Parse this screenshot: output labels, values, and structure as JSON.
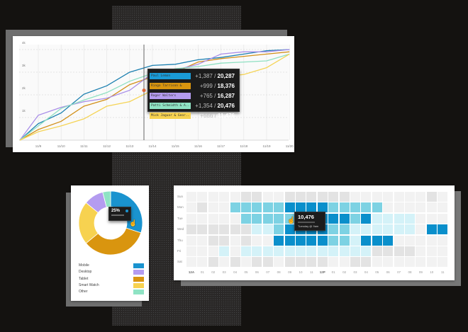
{
  "line_chart": {
    "chart_data": {
      "type": "line",
      "x": [
        "11/9",
        "11/10",
        "11/11",
        "11/12",
        "11/13",
        "11/14",
        "11/15",
        "11/16",
        "11/17",
        "11/18",
        "11/19",
        "11/20"
      ],
      "y_ticks": [
        "1k",
        "2k",
        "3k",
        "4k"
      ],
      "ylim": [
        0,
        4
      ],
      "grid": true,
      "series": [
        {
          "name": "Paul Lemon",
          "color": "#1b7fb0",
          "values": [
            0.73,
            1.2,
            2.03,
            2.4,
            3.0,
            3.3,
            3.35,
            3.55,
            3.65,
            3.8,
            3.95,
            4.0
          ]
        },
        {
          "name": "Ringo Tarrison &",
          "color": "#d2901a",
          "values": [
            0.47,
            0.83,
            1.5,
            1.8,
            2.45,
            2.8,
            3.0,
            3.45,
            3.6,
            3.7,
            3.8,
            3.9
          ]
        },
        {
          "name": "Roger Walters",
          "color": "#a98ee8",
          "values": [
            1.1,
            1.45,
            1.7,
            1.85,
            2.2,
            2.95,
            3.1,
            3.35,
            3.8,
            3.9,
            3.9,
            4.0
          ]
        },
        {
          "name": "Patti Schmidth & A..",
          "color": "#8fe0c2",
          "values": [
            0.63,
            1.4,
            1.77,
            2.1,
            2.6,
            2.95,
            3.15,
            3.25,
            3.4,
            3.45,
            3.5,
            3.8
          ]
        },
        {
          "name": "Mick Jaguar & Geor..",
          "color": "#f5d457",
          "values": [
            0.37,
            0.63,
            0.94,
            1.5,
            1.7,
            2.2,
            2.5,
            2.7,
            2.8,
            2.9,
            3.2,
            3.8
          ]
        }
      ]
    },
    "tooltip": {
      "rows": [
        {
          "name": "Paul Lemon",
          "color": "#1a9bd7",
          "delta": "+1,387",
          "total": "20,287"
        },
        {
          "name": "Ringo Tarrison &",
          "color": "#d9950f",
          "delta": "+999",
          "total": "18,376"
        },
        {
          "name": "Roger Walters",
          "color": "#b49cf0",
          "delta": "+765",
          "total": "16,287"
        },
        {
          "name": "Patti Schmidth & A..",
          "color": "#8fe3c4",
          "delta": "+1,354",
          "total": "20,476"
        },
        {
          "name": "Mick Jaguar & Geor..",
          "color": "#f7d250",
          "delta": "+666",
          "total": "11,476"
        }
      ]
    }
  },
  "donut": {
    "chart_data": {
      "type": "pie",
      "slices": [
        {
          "label": "Mobile",
          "value": 30,
          "color": "#1a93cf"
        },
        {
          "label": "Tablet",
          "value": 34,
          "color": "#d9950f"
        },
        {
          "label": "Smart Watch",
          "value": 22,
          "color": "#f7d250"
        },
        {
          "label": "Desktop",
          "value": 10,
          "color": "#b49cf0"
        },
        {
          "label": "Other",
          "value": 4,
          "color": "#8fe3c4"
        }
      ]
    },
    "legend": [
      {
        "label": "Mobile",
        "color": "#1a93cf"
      },
      {
        "label": "Desktop",
        "color": "#b49cf0"
      },
      {
        "label": "Tablet",
        "color": "#d9950f"
      },
      {
        "label": "Smart Watch",
        "color": "#f7d250"
      },
      {
        "label": "Other",
        "color": "#8fe3c4"
      }
    ],
    "tooltip": {
      "value": "25%"
    }
  },
  "heatmap": {
    "chart_data": {
      "type": "heatmap",
      "rows": [
        "Sun",
        "Mon",
        "Tue",
        "Wed",
        "Thu",
        "Fri",
        "Sat"
      ],
      "columns": [
        "12A",
        "01",
        "02",
        "03",
        "04",
        "05",
        "06",
        "07",
        "08",
        "09",
        "10",
        "11",
        "12P",
        "01",
        "02",
        "03",
        "04",
        "05",
        "06",
        "07",
        "08",
        "09",
        "10",
        "11"
      ],
      "level_colors": [
        "#f2f2f2",
        "#e3e3e3",
        "#d4f2f8",
        "#7dd2e3",
        "#0a8fcb"
      ],
      "levels": [
        [
          0,
          0,
          0,
          0,
          0,
          1,
          1,
          0,
          0,
          1,
          1,
          1,
          1,
          1,
          1,
          0,
          0,
          0,
          0,
          0,
          0,
          0,
          1,
          0
        ],
        [
          0,
          1,
          0,
          0,
          3,
          3,
          3,
          3,
          3,
          4,
          4,
          4,
          4,
          3,
          3,
          3,
          3,
          3,
          0,
          0,
          0,
          0,
          0,
          0
        ],
        [
          0,
          0,
          0,
          0,
          0,
          3,
          3,
          3,
          3,
          3,
          4,
          4,
          4,
          4,
          4,
          3,
          4,
          2,
          2,
          2,
          2,
          0,
          0,
          0
        ],
        [
          1,
          1,
          1,
          1,
          1,
          1,
          2,
          2,
          3,
          4,
          4,
          4,
          4,
          3,
          3,
          2,
          2,
          2,
          2,
          2,
          2,
          0,
          4,
          4
        ],
        [
          0,
          0,
          1,
          1,
          0,
          1,
          0,
          0,
          4,
          4,
          4,
          4,
          4,
          3,
          3,
          2,
          4,
          4,
          4,
          0,
          0,
          0,
          0,
          0
        ],
        [
          0,
          0,
          0,
          2,
          0,
          2,
          2,
          2,
          2,
          2,
          2,
          2,
          2,
          2,
          2,
          2,
          2,
          1,
          1,
          1,
          1,
          0,
          0,
          0
        ],
        [
          0,
          0,
          1,
          0,
          1,
          0,
          1,
          1,
          0,
          1,
          1,
          1,
          1,
          0,
          0,
          1,
          1,
          0,
          0,
          0,
          0,
          0,
          0,
          0
        ]
      ]
    },
    "tooltip": {
      "value": "10,476",
      "time": "Tuesday @ 9am"
    }
  }
}
